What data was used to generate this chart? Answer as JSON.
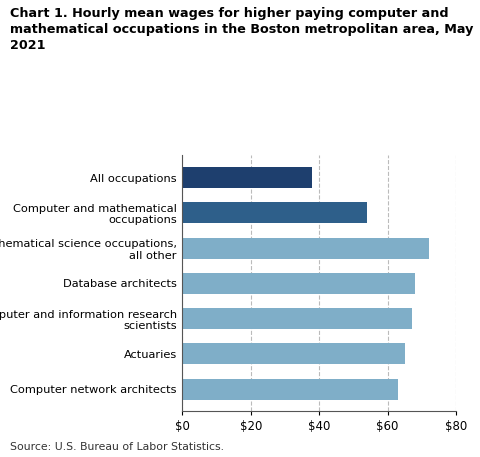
{
  "title_line1": "Chart 1. Hourly mean wages for higher paying computer and",
  "title_line2": "mathematical occupations in the Boston metropolitan area, May",
  "title_line3": "2021",
  "categories": [
    "Computer network architects",
    "Actuaries",
    "Computer and information research\nscientists",
    "Database architects",
    "Mathematical science occupations,\nall other",
    "Computer and mathematical\noccupations",
    "All occupations"
  ],
  "values": [
    63,
    65,
    67,
    68,
    72,
    54,
    38
  ],
  "colors": [
    "#7faec8",
    "#7faec8",
    "#7faec8",
    "#7faec8",
    "#7faec8",
    "#2e5f8a",
    "#1e3f6e"
  ],
  "xlim": [
    0,
    80
  ],
  "xticks": [
    0,
    20,
    40,
    60,
    80
  ],
  "xticklabels": [
    "$0",
    "$20",
    "$40",
    "$60",
    "$80"
  ],
  "source": "Source: U.S. Bureau of Labor Statistics.",
  "grid_color": "#bbbbbb",
  "background_color": "#ffffff",
  "bar_height": 0.6
}
